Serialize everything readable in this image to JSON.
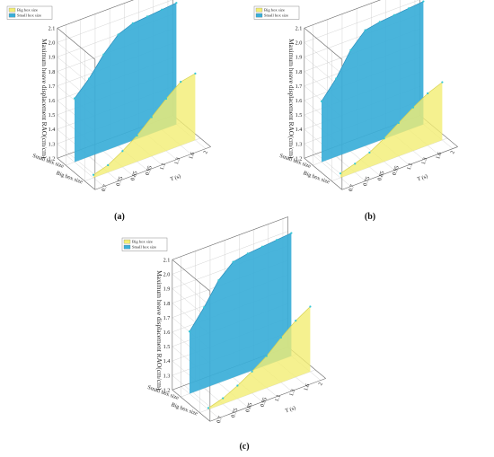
{
  "chart_data": [
    {
      "type": "area3d",
      "caption": "(a)",
      "ylabel": "Maximum heave displacement RAO(cm/cm)",
      "zlim": [
        1.2,
        2.1
      ],
      "z_ticks": [
        "1.2",
        "1.3",
        "1.4",
        "1.5",
        "1.6",
        "1.7",
        "1.8",
        "1.9",
        "2.0",
        "2.1"
      ],
      "x_label": "T (s)",
      "x_ticks": [
        "0.7",
        "0.75",
        "0.85",
        "0.95",
        "1.1",
        "1.3",
        "1.6",
        "2"
      ],
      "y_ticks": [
        "Big box size",
        "Small box size"
      ],
      "legend_position": "top-left",
      "series": [
        {
          "name": "Big box size",
          "color": "#f2ee73",
          "x": [
            0.7,
            0.75,
            0.85,
            0.95,
            1.1,
            1.3,
            1.6,
            2
          ],
          "values": [
            1.22,
            1.25,
            1.31,
            1.38,
            1.47,
            1.56,
            1.64,
            1.66
          ]
        },
        {
          "name": "Small box size",
          "color": "#3aaed8",
          "x": [
            0.7,
            0.75,
            0.85,
            0.95,
            1.1,
            1.3,
            1.6,
            2
          ],
          "values": [
            1.64,
            1.74,
            1.87,
            1.97,
            2.01,
            2.02,
            2.03,
            2.04
          ]
        }
      ]
    },
    {
      "type": "area3d",
      "caption": "(b)",
      "ylabel": "Maximum heave displacement RAO(cm/cm)",
      "zlim": [
        1.2,
        2.1
      ],
      "z_ticks": [
        "1.2",
        "1.3",
        "1.4",
        "1.5",
        "1.6",
        "1.7",
        "1.8",
        "1.9",
        "2.0",
        "2.1"
      ],
      "x_label": "T (s)",
      "x_ticks": [
        "0.7",
        "0.75",
        "0.85",
        "0.95",
        "1.1",
        "1.3",
        "1.6",
        "2"
      ],
      "y_ticks": [
        "Big box size",
        "Small box size"
      ],
      "legend_position": "top-left",
      "series": [
        {
          "name": "Big box size",
          "color": "#f2ee73",
          "x": [
            0.7,
            0.75,
            0.85,
            0.95,
            1.1,
            1.3,
            1.6,
            2
          ],
          "values": [
            1.23,
            1.26,
            1.3,
            1.36,
            1.43,
            1.5,
            1.56,
            1.6
          ]
        },
        {
          "name": "Small box size",
          "color": "#3aaed8",
          "x": [
            0.7,
            0.75,
            0.85,
            0.95,
            1.1,
            1.3,
            1.6,
            2
          ],
          "values": [
            1.62,
            1.74,
            1.9,
            2.0,
            2.02,
            2.03,
            2.04,
            2.05
          ]
        }
      ]
    },
    {
      "type": "area3d",
      "caption": "(c)",
      "ylabel": "Maximum heave displacement RAO(cm/cm)",
      "zlim": [
        1.2,
        2.1
      ],
      "z_ticks": [
        "1.2",
        "1.3",
        "1.4",
        "1.5",
        "1.6",
        "1.7",
        "1.8",
        "1.9",
        "2.0",
        "2.1"
      ],
      "x_label": "T (s)",
      "x_ticks": [
        "0.7",
        "0.75",
        "0.85",
        "0.95",
        "1.1",
        "1.3",
        "1.6",
        "2"
      ],
      "y_ticks": [
        "Big box size",
        "Small box size"
      ],
      "legend_position": "top-left",
      "series": [
        {
          "name": "Big box size",
          "color": "#f2ee73",
          "x": [
            0.7,
            0.75,
            0.85,
            0.95,
            1.1,
            1.3,
            1.6,
            2
          ],
          "values": [
            1.21,
            1.24,
            1.29,
            1.35,
            1.42,
            1.51,
            1.59,
            1.65
          ]
        },
        {
          "name": "Small box size",
          "color": "#3aaed8",
          "x": [
            0.7,
            0.75,
            0.85,
            0.95,
            1.1,
            1.3,
            1.6,
            2
          ],
          "values": [
            1.63,
            1.76,
            1.91,
            2.0,
            2.02,
            2.03,
            2.04,
            2.05
          ]
        }
      ]
    }
  ]
}
